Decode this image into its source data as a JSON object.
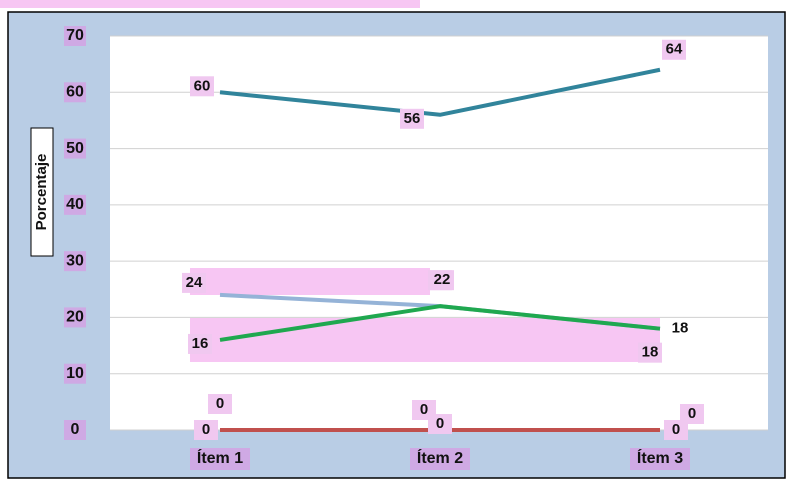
{
  "chart_data": {
    "type": "line",
    "y_axis_label": "Porcentaje",
    "categories": [
      "Ítem 1",
      "Ítem 2",
      "Ítem 3"
    ],
    "series": [
      {
        "color": "#31849b",
        "values": [
          60,
          56,
          64
        ]
      },
      {
        "color": "#95b3d7",
        "values": [
          24,
          22,
          18
        ]
      },
      {
        "color": "#1fa84f",
        "values": [
          16,
          22,
          18
        ]
      },
      {
        "color": "#9a9a9a",
        "values": [
          0,
          0,
          0
        ]
      },
      {
        "color": "#c0504d",
        "values": [
          0,
          0,
          0
        ]
      }
    ],
    "ylim": [
      0,
      70
    ],
    "yticks": [
      0,
      10,
      20,
      30,
      40,
      50,
      60,
      70
    ],
    "grid": true
  }
}
